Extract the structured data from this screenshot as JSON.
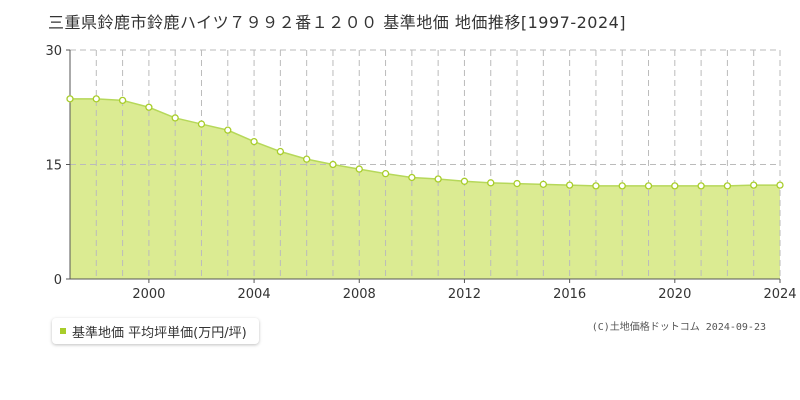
{
  "header": {
    "title": "三重県鈴鹿市鈴鹿ハイツ７９９２番１２００ 基準地価 地価推移[1997-2024]"
  },
  "legend": {
    "label": "基準地価 平均坪単価(万円/坪)"
  },
  "footer": {
    "credit": "(C)土地価格ドットコム 2024-09-23"
  },
  "colors": {
    "fill": "#dbeb92",
    "line": "#b6d85a",
    "marker_fill": "#ffffff",
    "marker_stroke": "#a8cd2a",
    "grid": "#bbbbbb",
    "axis_text": "#333333"
  },
  "chart_data": {
    "type": "area",
    "x": [
      1997,
      1998,
      1999,
      2000,
      2001,
      2002,
      2003,
      2004,
      2005,
      2006,
      2007,
      2008,
      2009,
      2010,
      2011,
      2012,
      2013,
      2014,
      2015,
      2016,
      2017,
      2018,
      2019,
      2020,
      2021,
      2022,
      2023,
      2024
    ],
    "series": [
      {
        "name": "基準地価 平均坪単価(万円/坪)",
        "values": [
          23.6,
          23.6,
          23.4,
          22.5,
          21.1,
          20.3,
          19.5,
          18.0,
          16.7,
          15.7,
          15.0,
          14.4,
          13.8,
          13.3,
          13.1,
          12.8,
          12.6,
          12.5,
          12.4,
          12.3,
          12.2,
          12.2,
          12.2,
          12.2,
          12.2,
          12.2,
          12.3,
          12.3
        ]
      }
    ],
    "xlim": [
      1997,
      2024
    ],
    "ylim": [
      0,
      30
    ],
    "xticks": [
      "2000",
      "2004",
      "2008",
      "2012",
      "2016",
      "2020",
      "2024"
    ],
    "yticks": [
      "0",
      "15",
      "30"
    ],
    "grid": true,
    "legend_position": "bottom-left"
  }
}
